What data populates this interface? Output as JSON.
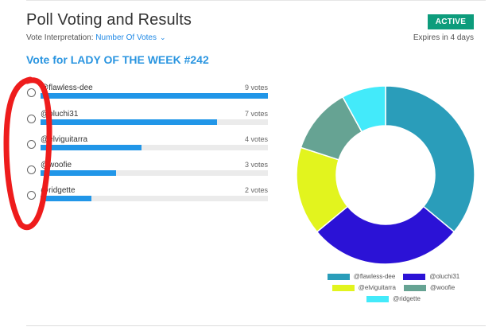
{
  "header": {
    "title": "Poll Voting and Results",
    "interpretation_label": "Vote Interpretation:",
    "interpretation_value": "Number Of Votes",
    "status": "ACTIVE",
    "expires": "Expires in 4 days"
  },
  "poll": {
    "title": "Vote for LADY OF THE WEEK #242",
    "max_votes": 9,
    "options": [
      {
        "name": "@flawless-dee",
        "votes_label": "9 votes",
        "votes": 9
      },
      {
        "name": "@oluchi31",
        "votes_label": "7 votes",
        "votes": 7
      },
      {
        "name": "@elviguitarra",
        "votes_label": "4 votes",
        "votes": 4
      },
      {
        "name": "@woofie",
        "votes_label": "3 votes",
        "votes": 3
      },
      {
        "name": "@ridgette",
        "votes_label": "2 votes",
        "votes": 2
      }
    ]
  },
  "colors": {
    "accent": "#2a95e0",
    "bar_fill": "#2196e8",
    "badge": "#0d9c7c",
    "annotation": "#ee1c1c"
  },
  "chart_data": {
    "type": "pie",
    "variant": "donut",
    "categories": [
      "@flawless-dee",
      "@oluchi31",
      "@elviguitarra",
      "@woofie",
      "@ridgette"
    ],
    "values": [
      9,
      7,
      4,
      3,
      2
    ],
    "colors": [
      "#2a9dba",
      "#2b12d6",
      "#e2f41e",
      "#66a393",
      "#43eafa"
    ],
    "legend_position": "bottom"
  }
}
